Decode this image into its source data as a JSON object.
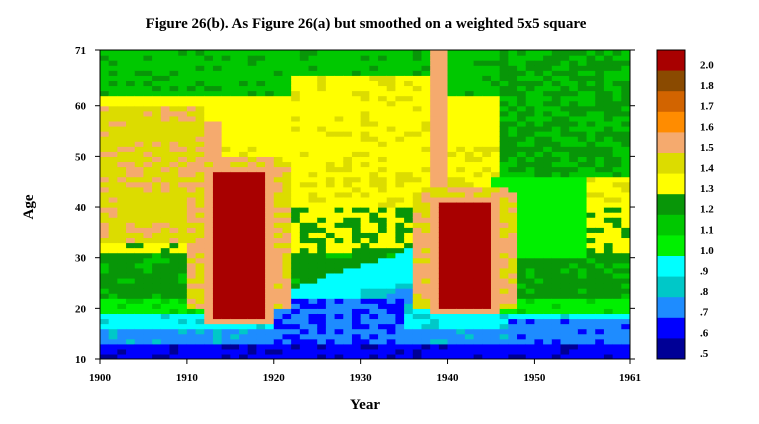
{
  "chart_data": {
    "type": "heatmap",
    "title": "Figure 26(b). As Figure 26(a) but smoothed on a weighted 5x5 square",
    "xlabel": "Year",
    "ylabel": "Age",
    "xlim": [
      1900,
      1961
    ],
    "ylim": [
      10,
      71
    ],
    "xticks": [
      "1900",
      "1910",
      "1920",
      "1930",
      "1940",
      "1950",
      "1961"
    ],
    "yticks": [
      "10",
      "20",
      "30",
      "40",
      "50",
      "60",
      "71"
    ],
    "legend": {
      "placement": "right",
      "labels": [
        "2.0",
        "1.8",
        "1.7",
        "1.6",
        "1.5",
        "1.4",
        "1.3",
        "1.2",
        "1.1",
        "1.0",
        ".9",
        ".8",
        ".7",
        ".6",
        ".5"
      ],
      "colors": [
        "#a80000",
        "#8a4a00",
        "#d26400",
        "#ff8c00",
        "#f5aa6e",
        "#dcdc00",
        "#ffff00",
        "#089608",
        "#00c800",
        "#00f000",
        "#00ffff",
        "#00c8c8",
        "#1e8cff",
        "#0000ff",
        "#000096"
      ]
    },
    "regions": [
      {
        "name": "high-1918",
        "x": [
          1912,
          1920
        ],
        "y": [
          17,
          48
        ],
        "level": "2.0"
      },
      {
        "name": "high-1940s",
        "x": [
          1938,
          1946
        ],
        "y": [
          19,
          42
        ],
        "level": "2.0"
      }
    ]
  }
}
